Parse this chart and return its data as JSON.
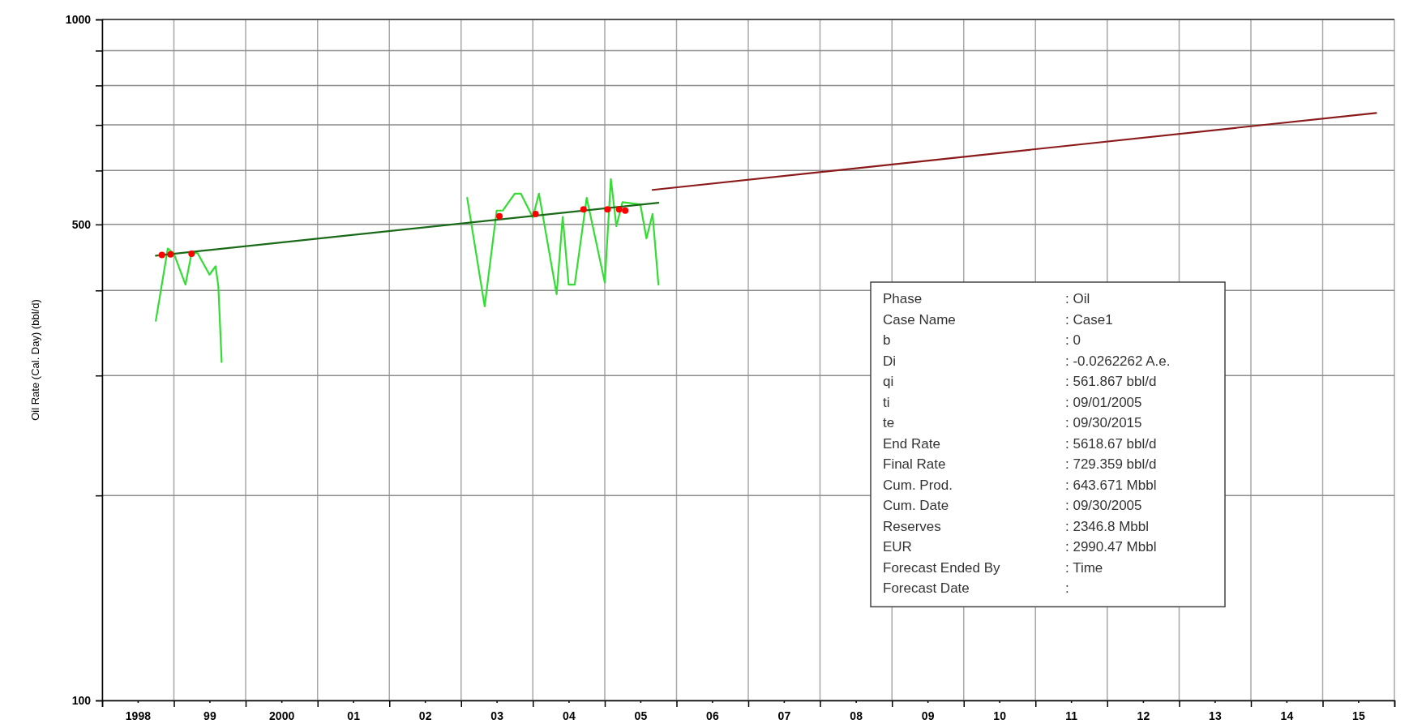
{
  "chart_data": {
    "type": "line",
    "ylabel": "Oil Rate (Cal. Day) (bbl/d)",
    "log": "y",
    "grid": true,
    "xlim": [
      "1998",
      "2016"
    ],
    "xticks": [
      {
        "value": "1998",
        "label": null
      },
      {
        "value": "1998-07-01",
        "label": "1998"
      },
      {
        "value": "1999",
        "label": null
      },
      {
        "value": "1999-07-01",
        "label": "99"
      },
      {
        "value": "2000",
        "label": null
      },
      {
        "value": "2000-07-01",
        "label": "2000"
      },
      {
        "value": "2001",
        "label": null
      },
      {
        "value": "2001-07-01",
        "label": "01"
      },
      {
        "value": "2002",
        "label": null
      },
      {
        "value": "2002-07-01",
        "label": "02"
      },
      {
        "value": "2003",
        "label": null
      },
      {
        "value": "2003-07-01",
        "label": "03"
      },
      {
        "value": "2004",
        "label": null
      },
      {
        "value": "2004-07-01",
        "label": "04"
      },
      {
        "value": "2005",
        "label": null
      },
      {
        "value": "2005-07-01",
        "label": "05"
      },
      {
        "value": "2006",
        "label": null
      },
      {
        "value": "2006-07-01",
        "label": "06"
      },
      {
        "value": "2007",
        "label": null
      },
      {
        "value": "2007-07-01",
        "label": "07"
      },
      {
        "value": "2008",
        "label": null
      },
      {
        "value": "2008-07-01",
        "label": "08"
      },
      {
        "value": "2009",
        "label": null
      },
      {
        "value": "2009-07-01",
        "label": "09"
      },
      {
        "value": "2010",
        "label": null
      },
      {
        "value": "2010-07-01",
        "label": "10"
      },
      {
        "value": "2011",
        "label": null
      },
      {
        "value": "2011-07-01",
        "label": "11"
      },
      {
        "value": "2012",
        "label": null
      },
      {
        "value": "2012-07-01",
        "label": "12"
      },
      {
        "value": "2013",
        "label": null
      },
      {
        "value": "2013-07-01",
        "label": "13"
      },
      {
        "value": "2014",
        "label": null
      },
      {
        "value": "2014-07-01",
        "label": "14"
      },
      {
        "value": "2015",
        "label": null
      },
      {
        "value": "2015-07-01",
        "label": "15"
      },
      {
        "value": "2016",
        "label": null
      }
    ],
    "ylim": [
      100,
      1000
    ],
    "yticks": [
      100,
      {
        "value": 200,
        "label": null
      },
      {
        "value": 300,
        "label": null
      },
      {
        "value": 400,
        "label": null
      },
      500,
      {
        "value": 600,
        "label": null
      },
      {
        "value": 700,
        "label": null
      },
      {
        "value": 800,
        "label": null
      },
      {
        "value": 900,
        "label": null
      },
      1000
    ],
    "series": [
      {
        "color": "#33dd33",
        "marker": "none",
        "x": [
          "1998-10-01",
          "1998-12-01",
          "1999-01-01",
          "1999-03-01",
          "1999-04-01",
          "1999-05-01",
          "1999-07-01",
          "1999-08-01",
          "1999-08-15",
          "1999-09-01",
          "2001-06-01",
          "2003-02-01",
          "2003-05-01",
          "2003-07-01",
          "2003-08-01",
          "2003-10-01",
          "2003-11-01",
          "2004-01-01",
          "2004-02-01",
          "2004-05-01",
          "2004-06-01",
          "2004-07-01",
          "2004-08-01",
          "2004-10-01",
          "2005-01-01",
          "2005-02-01",
          "2005-03-01",
          "2005-04-01",
          "2005-07-01",
          "2005-08-01",
          "2005-09-01",
          "2005-10-01"
        ],
        "values": [
          361,
          461,
          453,
          408,
          454,
          454,
          422,
          434,
          406,
          314,
          null,
          547,
          379,
          524,
          524,
          555,
          555,
          512,
          555,
          395,
          513,
          408,
          408,
          547,
          411,
          583,
          497,
          539,
          535,
          477,
          518,
          408
        ]
      },
      {
        "color": "#1a6a1a",
        "marker": "none",
        "x": [
          "1998-10-01",
          "2005-10-01"
        ],
        "values": [
          450,
          538
        ]
      },
      {
        "color": "#8b1a1a",
        "marker": "none",
        "x": [
          "2005-09-01",
          "2015-09-30"
        ],
        "values": [
          562,
          729
        ]
      },
      {
        "type": "scatter",
        "color": "#ff0000",
        "marker": "circle",
        "x": [
          "1998-11-01",
          "1998-12-15",
          "1999-04-01",
          "2003-07-15",
          "2004-01-15",
          "2004-09-15",
          "2005-01-15",
          "2005-03-15",
          "2005-04-15"
        ],
        "values": [
          451,
          452,
          453,
          514,
          518,
          526,
          526,
          526,
          524
        ]
      }
    ],
    "annotations": [
      "Phase : Oil",
      "Case Name : Case1",
      "b : 0",
      "Di : -0.0262262 A.e.",
      "qi : 561.867 bbl/d",
      "ti : 09/01/2005",
      "te : 09/30/2015",
      "End Rate : 5618.67 bbl/d",
      "Final Rate : 729.359 bbl/d",
      "Cum. Prod. : 643.671 Mbbl",
      "Cum. Date : 09/30/2005",
      "Reserves : 2346.8 Mbbl",
      "EUR : 2990.47 Mbbl",
      "Forecast Ended By : Time",
      "Forecast Date :"
    ]
  }
}
